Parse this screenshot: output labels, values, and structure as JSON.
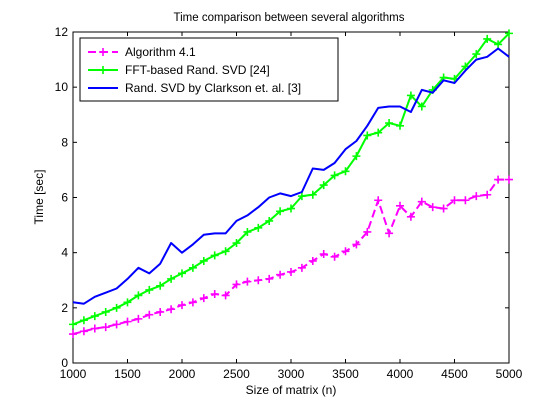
{
  "chart_data": {
    "type": "line",
    "title": "Time comparison between several algorithms",
    "xlabel": "Size of matrix (n)",
    "ylabel": "Time [sec]",
    "xlim": [
      1000,
      5000
    ],
    "ylim": [
      0,
      12
    ],
    "xticks": [
      1000,
      1500,
      2000,
      2500,
      3000,
      3500,
      4000,
      4500,
      5000
    ],
    "yticks": [
      0,
      2,
      4,
      6,
      8,
      10,
      12
    ],
    "grid": false,
    "legend_position": "top-left",
    "x": [
      1000,
      1100,
      1200,
      1300,
      1400,
      1500,
      1600,
      1700,
      1800,
      1900,
      2000,
      2100,
      2200,
      2300,
      2400,
      2500,
      2600,
      2700,
      2800,
      2900,
      3000,
      3100,
      3200,
      3300,
      3400,
      3500,
      3600,
      3700,
      3800,
      3900,
      4000,
      4100,
      4200,
      4300,
      4400,
      4500,
      4600,
      4700,
      4800,
      4900,
      5000
    ],
    "series": [
      {
        "name": "Algorithm 4.1",
        "color": "#ff00ff",
        "style": "dashed",
        "marker": "plus",
        "values": [
          1.05,
          1.15,
          1.25,
          1.3,
          1.4,
          1.5,
          1.6,
          1.75,
          1.85,
          1.95,
          2.1,
          2.2,
          2.35,
          2.5,
          2.45,
          2.85,
          2.95,
          3.0,
          3.05,
          3.2,
          3.3,
          3.45,
          3.7,
          3.95,
          3.85,
          4.05,
          4.3,
          4.75,
          5.9,
          4.7,
          5.7,
          5.3,
          5.85,
          5.65,
          5.6,
          5.9,
          5.9,
          6.05,
          6.1,
          6.65,
          6.65
        ]
      },
      {
        "name": "FFT-based Rand. SVD [24]",
        "color": "#00ff00",
        "style": "solid",
        "marker": "plus",
        "values": [
          1.4,
          1.55,
          1.7,
          1.85,
          2.0,
          2.2,
          2.45,
          2.65,
          2.8,
          3.05,
          3.25,
          3.45,
          3.7,
          3.9,
          4.05,
          4.35,
          4.75,
          4.9,
          5.15,
          5.5,
          5.6,
          6.05,
          6.1,
          6.45,
          6.8,
          6.95,
          7.5,
          8.25,
          8.35,
          8.7,
          8.6,
          9.7,
          9.3,
          9.9,
          10.35,
          10.3,
          10.75,
          11.2,
          11.75,
          11.55,
          11.95
        ]
      },
      {
        "name": "Rand. SVD by Clarkson et. al. [3]",
        "color": "#0000ff",
        "style": "solid",
        "marker": "none",
        "values": [
          2.2,
          2.15,
          2.4,
          2.55,
          2.7,
          3.05,
          3.45,
          3.25,
          3.6,
          4.35,
          4.0,
          4.3,
          4.65,
          4.7,
          4.7,
          5.15,
          5.35,
          5.65,
          6.0,
          6.15,
          6.05,
          6.2,
          7.05,
          7.0,
          7.25,
          7.75,
          8.05,
          8.6,
          9.25,
          9.3,
          9.3,
          9.1,
          9.9,
          9.8,
          10.25,
          10.15,
          10.6,
          11.0,
          11.1,
          11.4,
          11.1
        ]
      }
    ]
  }
}
